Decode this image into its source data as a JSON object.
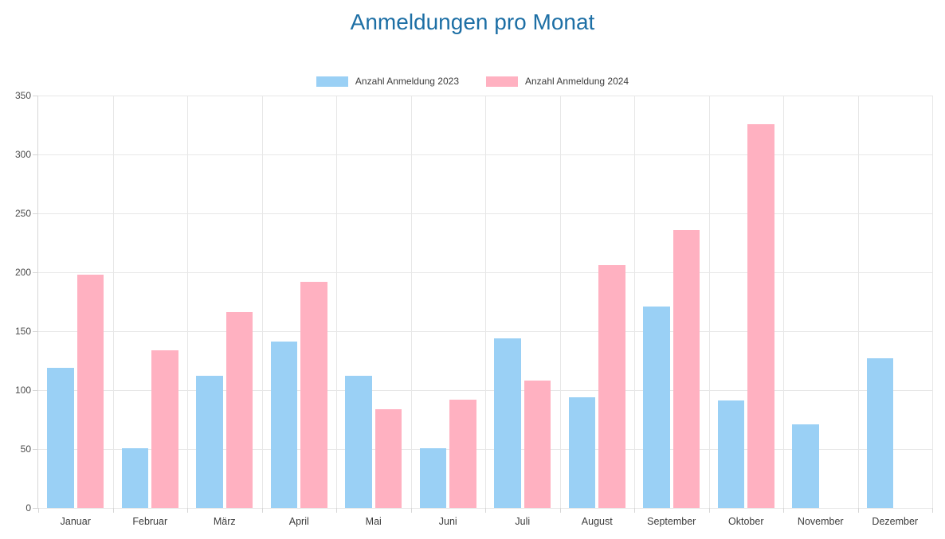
{
  "title": "Anmeldungen pro Monat",
  "colors": {
    "title": "#1d6fa5",
    "series_2023": "#9ad0f5",
    "series_2024": "#ffb1c1",
    "gridline": "#e7e7e7",
    "axis_border": "#d6d6d6",
    "tick_text": "#4a4a4a",
    "category_text": "#3c3c3c",
    "background": "#ffffff"
  },
  "legend": {
    "items": [
      {
        "label": "Anzahl Anmeldung 2023",
        "color": "#9ad0f5"
      },
      {
        "label": "Anzahl Anmeldung 2024",
        "color": "#ffb1c1"
      }
    ]
  },
  "chart_data": {
    "type": "bar",
    "title": "Anmeldungen pro Monat",
    "xlabel": "",
    "ylabel": "",
    "grid": true,
    "legend_position": "top",
    "ylim": [
      0,
      350
    ],
    "yticks": [
      0,
      50,
      100,
      150,
      200,
      250,
      300,
      350
    ],
    "categories": [
      "Januar",
      "Februar",
      "März",
      "April",
      "Mai",
      "Juni",
      "Juli",
      "August",
      "September",
      "Oktober",
      "November",
      "Dezember"
    ],
    "series": [
      {
        "name": "Anzahl Anmeldung 2023",
        "color": "#9ad0f5",
        "values": [
          119,
          51,
          112,
          141,
          112,
          51,
          144,
          94,
          171,
          91,
          71,
          127
        ]
      },
      {
        "name": "Anzahl Anmeldung 2024",
        "color": "#ffb1c1",
        "values": [
          198,
          134,
          166,
          192,
          84,
          92,
          108,
          206,
          236,
          326,
          0,
          0
        ]
      }
    ]
  }
}
